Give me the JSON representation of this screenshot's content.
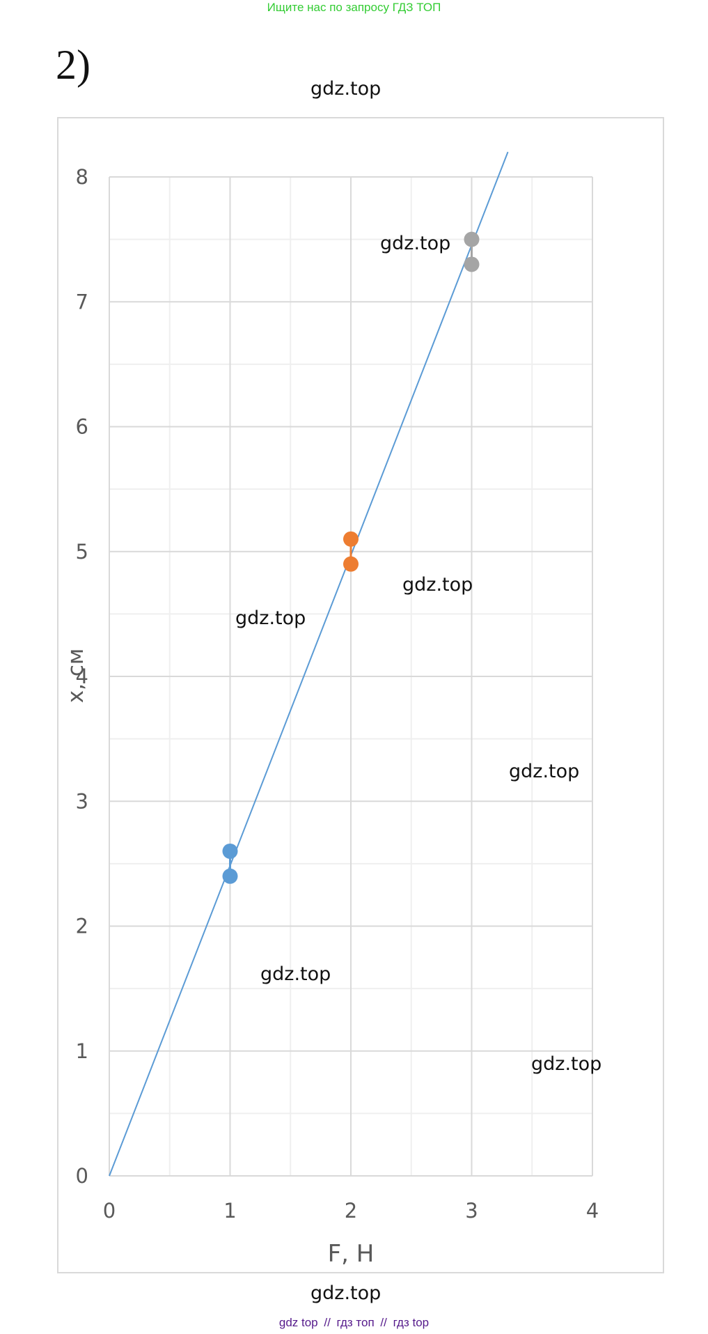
{
  "banner": {
    "text": "Ищите нас по запросу ГДЗ ТОП"
  },
  "problem": {
    "number": "2)"
  },
  "watermarks": [
    "gdz.top",
    "gdz.top",
    "gdz.top",
    "gdz.top",
    "gdz.top",
    "gdz.top",
    "gdz.top",
    "gdz.top"
  ],
  "footer": {
    "link1": "gdz top",
    "sep1": "//",
    "link2": "гдз топ",
    "sep2": "//",
    "link3": "гдз top"
  },
  "colors": {
    "series1": "#5b9bd5",
    "series2": "#ed7d31",
    "series3": "#a5a5a5",
    "trendline": "#5b9bd5",
    "grid_major": "#d9d9d9",
    "grid_minor": "#efefef",
    "axis_text": "#595959"
  },
  "chart_data": {
    "type": "scatter",
    "title": "",
    "xlabel": "F, Н",
    "ylabel": "x, см",
    "xlim": [
      0,
      4
    ],
    "ylim": [
      0,
      8
    ],
    "x_ticks": [
      "0",
      "1",
      "2",
      "3",
      "4"
    ],
    "y_ticks": [
      "0",
      "1",
      "2",
      "3",
      "4",
      "5",
      "6",
      "7",
      "8"
    ],
    "grid": true,
    "series": [
      {
        "x": [
          1,
          1
        ],
        "y": [
          2.6,
          2.4
        ],
        "color": "#5b9bd5"
      },
      {
        "x": [
          2,
          2
        ],
        "y": [
          5.1,
          4.9
        ],
        "color": "#ed7d31"
      },
      {
        "x": [
          3,
          3
        ],
        "y": [
          7.5,
          7.3
        ],
        "color": "#a5a5a5"
      }
    ],
    "trendline": {
      "x": [
        0,
        3.3
      ],
      "y": [
        0,
        8.2
      ],
      "color": "#5b9bd5"
    }
  }
}
